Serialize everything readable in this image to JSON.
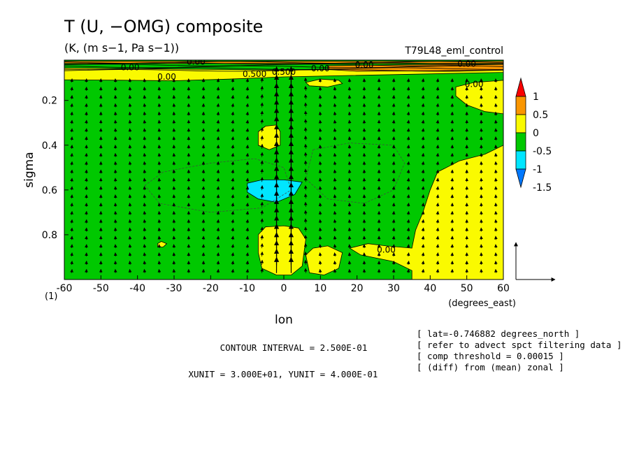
{
  "colors": {
    "green": "#00c800",
    "yellow": "#fafa00",
    "orange": "#fa9600",
    "red": "#fa0000",
    "cyan": "#00e6ff",
    "blue": "#0078ff"
  },
  "header": {
    "title": "T (U, −OMG) composite",
    "units": "(K, (m s−1, Pa s−1))",
    "experiment": "T79L48_eml_control"
  },
  "info": {
    "contour_interval": "CONTOUR INTERVAL = 2.500E-01",
    "unit_vectors": "XUNIT = 3.000E+01, YUNIT = 4.000E-01",
    "notes": [
      "[ lat=-0.746882 degrees_north ]",
      "[ refer to advect spct filtering data ]",
      "[ comp threshold = 0.00015 ]",
      "[ (diff) from (mean) zonal ]"
    ]
  },
  "chart_data": {
    "type": "heatmap",
    "title": "T (U, −OMG) composite",
    "subtitle": "(K, (m s−1, Pa s−1))",
    "xlabel": "lon",
    "xunits": "(degrees_east)",
    "ylabel": "sigma",
    "corner_label": "(1)",
    "xlim": [
      -60,
      60
    ],
    "ylim": [
      0.02,
      1.0
    ],
    "y_inverted": true,
    "x_ticks": [
      -60,
      -50,
      -40,
      -30,
      -20,
      -10,
      0,
      10,
      20,
      30,
      40,
      50,
      60
    ],
    "x_tick_labels": [
      "-60",
      "-50",
      "-40",
      "-30",
      "-20",
      "-10",
      "0",
      "10",
      "20",
      "30",
      "40",
      "50",
      "60"
    ],
    "y_ticks": [
      0.2,
      0.4,
      0.6,
      0.8
    ],
    "y_tick_labels": [
      "0.2",
      "0.4",
      "0.6",
      "0.8"
    ],
    "colorbar": {
      "labels": [
        "1",
        "0.5",
        "0",
        "-0.5",
        "-1",
        "-1.5"
      ],
      "bins": [
        {
          "range": [
            1.0,
            99
          ],
          "color": "#fa0000"
        },
        {
          "range": [
            0.5,
            1.0
          ],
          "color": "#fa9600"
        },
        {
          "range": [
            0.0,
            0.5
          ],
          "color": "#fafa00"
        },
        {
          "range": [
            -0.5,
            0.0
          ],
          "color": "#00c800"
        },
        {
          "range": [
            -1.0,
            -0.5
          ],
          "color": "#00e6ff"
        },
        {
          "range": [
            -1.5,
            -1.0
          ],
          "color": "#0078ff"
        },
        {
          "range": [
            -99,
            -1.5
          ],
          "color": "#0050c8"
        }
      ]
    },
    "contour_labels": [
      "0.00",
      "0.00",
      "0.00",
      "0.500",
      "0.500",
      "0.00",
      "0.00",
      "0.00",
      "0.00",
      "0.00"
    ],
    "background_value_range": [
      -0.5,
      0.0
    ],
    "regions": [
      {
        "value": "0 to 0.5",
        "lon": [
          -60,
          60
        ],
        "sigma": [
          0.06,
          0.11
        ],
        "desc": "upper-level warm band"
      },
      {
        "value": "0.5 to 1",
        "lon": [
          15,
          60
        ],
        "sigma": [
          0.04,
          0.07
        ],
        "desc": "upper-level orange band"
      },
      {
        "value": "0 to 0.5",
        "lon": [
          -7,
          -1
        ],
        "sigma": [
          0.31,
          0.42
        ],
        "desc": "mid-level warm anomaly west of 0"
      },
      {
        "value": "-1 to -0.5",
        "lon": [
          -10,
          5
        ],
        "sigma": [
          0.55,
          0.66
        ],
        "desc": "cold anomaly near sigma 0.6"
      },
      {
        "value": "0 to 0.5",
        "lon": [
          -7,
          6
        ],
        "sigma": [
          0.76,
          0.98
        ],
        "desc": "low-level warm anomaly"
      },
      {
        "value": "0 to 0.5",
        "lon": [
          36,
          60
        ],
        "sigma": [
          0.45,
          1.0
        ],
        "desc": "eastern warm region"
      },
      {
        "value": "0 to 0.5",
        "lon": [
          47,
          60
        ],
        "sigma": [
          0.12,
          0.25
        ],
        "desc": "upper eastern warm patch"
      }
    ],
    "unit_vector": {
      "xunit": 30.0,
      "yunit": 0.4
    }
  }
}
